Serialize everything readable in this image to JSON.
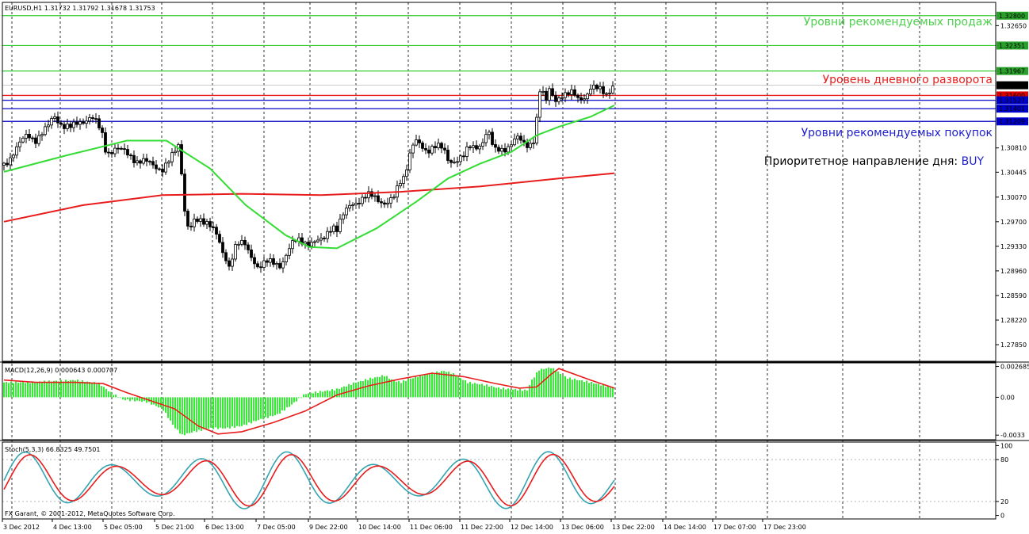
{
  "chart_data": {
    "type": "candlestick",
    "header": "EURUSD,H1  1.31732 1.31792 1.31678 1.31753",
    "watermark": "FX Garant, © 2001-2012, MetaQuotes Software Corp.",
    "price_axis": {
      "range": [
        1.276,
        1.33
      ],
      "ticks": [
        {
          "v": 1.3265,
          "label": "1.32650"
        },
        {
          "v": 1.3081,
          "label": "1.30810"
        },
        {
          "v": 1.30445,
          "label": "1.30445"
        },
        {
          "v": 1.3007,
          "label": "1.30070"
        },
        {
          "v": 1.297,
          "label": "1.29700"
        },
        {
          "v": 1.2933,
          "label": "1.29330"
        },
        {
          "v": 1.2896,
          "label": "1.28960"
        },
        {
          "v": 1.2859,
          "label": "1.28590"
        },
        {
          "v": 1.2822,
          "label": "1.28220"
        },
        {
          "v": 1.2785,
          "label": "1.27850"
        }
      ]
    },
    "level_tags": [
      {
        "v": 1.328,
        "label": "1.32800",
        "color": "#28a02a"
      },
      {
        "v": 1.32351,
        "label": "1.32351",
        "color": "#28a02a"
      },
      {
        "v": 1.31967,
        "label": "1.31967",
        "color": "#28a02a"
      },
      {
        "v": 1.31753,
        "label": "1.31753",
        "color": "#000000"
      },
      {
        "v": 1.316,
        "label": "1.31600",
        "color": "#e00000"
      },
      {
        "v": 1.31527,
        "label": "1.31527",
        "color": "#0000cc"
      },
      {
        "v": 1.31401,
        "label": "1.31401",
        "color": "#0000cc"
      },
      {
        "v": 1.31209,
        "label": "1.31209",
        "color": "#0000cc"
      }
    ],
    "annotations": {
      "sell": "Уровни рекомендуемых продаж",
      "pivot": "Уровень дневного разворота",
      "buy": "Уровни рекомендуемых покупок",
      "direction_prefix": "Приоритетное направление дня: ",
      "direction_value": "BUY"
    },
    "x_labels": [
      "3 Dec 2012",
      "4 Dec 13:00",
      "5 Dec 05:00",
      "5 Dec 21:00",
      "6 Dec 13:00",
      "7 Dec 05:00",
      "9 Dec 22:00",
      "10 Dec 14:00",
      "11 Dec 06:00",
      "11 Dec 22:00",
      "12 Dec 14:00",
      "13 Dec 06:00",
      "13 Dec 22:00",
      "14 Dec 14:00",
      "17 Dec 07:00",
      "17 Dec 23:00"
    ],
    "close_path": [
      [
        0,
        1.3055
      ],
      [
        15,
        1.308
      ],
      [
        30,
        1.31
      ],
      [
        40,
        1.3095
      ],
      [
        55,
        1.311
      ],
      [
        63,
        1.313
      ],
      [
        75,
        1.3115
      ],
      [
        85,
        1.311
      ],
      [
        95,
        1.312
      ],
      [
        103,
        1.3125
      ],
      [
        110,
        1.3128
      ],
      [
        118,
        1.3115
      ],
      [
        124,
        1.31
      ],
      [
        126,
        1.3085
      ],
      [
        130,
        1.3075
      ],
      [
        140,
        1.308
      ],
      [
        150,
        1.3075
      ],
      [
        160,
        1.307
      ],
      [
        168,
        1.3062
      ],
      [
        175,
        1.306
      ],
      [
        180,
        1.3058
      ],
      [
        190,
        1.3055
      ],
      [
        200,
        1.305
      ],
      [
        210,
        1.3062
      ],
      [
        220,
        1.3085
      ],
      [
        222,
        1.306
      ],
      [
        225,
        1.304
      ],
      [
        226,
        1.301
      ],
      [
        228,
        1.299
      ],
      [
        230,
        1.297
      ],
      [
        234,
        1.296
      ],
      [
        240,
        1.2968
      ],
      [
        250,
        1.297
      ],
      [
        257,
        1.2972
      ],
      [
        263,
        1.2965
      ],
      [
        268,
        1.295
      ],
      [
        272,
        1.2935
      ],
      [
        275,
        1.292
      ],
      [
        281,
        1.291
      ],
      [
        285,
        1.29
      ],
      [
        290,
        1.2935
      ],
      [
        296,
        1.294
      ],
      [
        303,
        1.2935
      ],
      [
        310,
        1.2918
      ],
      [
        320,
        1.2905
      ],
      [
        330,
        1.291
      ],
      [
        340,
        1.2905
      ],
      [
        348,
        1.2905
      ],
      [
        355,
        1.292
      ],
      [
        362,
        1.2935
      ],
      [
        370,
        1.294
      ],
      [
        380,
        1.294
      ],
      [
        392,
        1.294
      ],
      [
        398,
        1.2938
      ],
      [
        405,
        1.2945
      ],
      [
        410,
        1.296
      ],
      [
        416,
        1.2965
      ],
      [
        420,
        1.296
      ],
      [
        426,
        1.2975
      ],
      [
        432,
        1.2985
      ],
      [
        437,
        1.2995
      ],
      [
        443,
        1.3
      ],
      [
        450,
        1.3005
      ],
      [
        460,
        1.3008
      ],
      [
        470,
        1.3005
      ],
      [
        480,
        1.3
      ],
      [
        486,
        1.3
      ],
      [
        492,
        1.3005
      ],
      [
        500,
        1.303
      ],
      [
        505,
        1.304
      ],
      [
        509,
        1.306
      ],
      [
        514,
        1.3085
      ],
      [
        520,
        1.309
      ],
      [
        526,
        1.308
      ],
      [
        533,
        1.3075
      ],
      [
        540,
        1.3085
      ],
      [
        546,
        1.3088
      ],
      [
        555,
        1.3075
      ],
      [
        560,
        1.306
      ],
      [
        566,
        1.306
      ],
      [
        573,
        1.3068
      ],
      [
        580,
        1.307
      ],
      [
        587,
        1.308
      ],
      [
        593,
        1.308
      ],
      [
        599,
        1.3085
      ],
      [
        605,
        1.3095
      ],
      [
        610,
        1.311
      ],
      [
        617,
        1.308
      ],
      [
        620,
        1.3075
      ],
      [
        625,
        1.3078
      ],
      [
        630,
        1.308
      ],
      [
        636,
        1.3085
      ],
      [
        642,
        1.309
      ],
      [
        647,
        1.3095
      ],
      [
        652,
        1.309
      ],
      [
        658,
        1.3085
      ],
      [
        665,
        1.309
      ],
      [
        671,
        1.31
      ],
      [
        673,
        1.315
      ],
      [
        677,
        1.317
      ],
      [
        680,
        1.316
      ],
      [
        684,
        1.315
      ],
      [
        688,
        1.317
      ],
      [
        693,
        1.316
      ],
      [
        698,
        1.3155
      ],
      [
        703,
        1.316
      ],
      [
        708,
        1.3158
      ],
      [
        713,
        1.316
      ],
      [
        718,
        1.3165
      ],
      [
        722,
        1.316
      ],
      [
        726,
        1.3158
      ],
      [
        731,
        1.3158
      ],
      [
        736,
        1.316
      ],
      [
        741,
        1.317
      ],
      [
        745,
        1.3168
      ],
      [
        750,
        1.3172
      ],
      [
        755,
        1.317
      ],
      [
        760,
        1.3165
      ],
      [
        765,
        1.3168
      ],
      [
        770,
        1.3175
      ]
    ],
    "ma_fast": [
      [
        0,
        1.3045
      ],
      [
        80,
        1.307
      ],
      [
        155,
        1.3092
      ],
      [
        205,
        1.3092
      ],
      [
        260,
        1.305
      ],
      [
        305,
        1.2995
      ],
      [
        355,
        1.295
      ],
      [
        385,
        1.2932
      ],
      [
        420,
        1.293
      ],
      [
        470,
        1.296
      ],
      [
        520,
        1.3
      ],
      [
        560,
        1.3035
      ],
      [
        600,
        1.3057
      ],
      [
        640,
        1.3075
      ],
      [
        672,
        1.31
      ],
      [
        700,
        1.3113
      ],
      [
        740,
        1.3128
      ],
      [
        770,
        1.3145
      ]
    ],
    "ma_slow": [
      [
        0,
        1.297
      ],
      [
        100,
        1.2995
      ],
      [
        200,
        1.301
      ],
      [
        300,
        1.3012
      ],
      [
        400,
        1.301
      ],
      [
        500,
        1.3015
      ],
      [
        600,
        1.3023
      ],
      [
        700,
        1.3035
      ],
      [
        770,
        1.3043
      ]
    ],
    "macd": {
      "label": "MACD(12,26,9) 0.000643 0.000707",
      "range": [
        -0.0037,
        0.003
      ],
      "ticks": [
        {
          "v": 0.002685,
          "label": "0.002685"
        },
        {
          "v": 0.0,
          "label": "0.00"
        },
        {
          "v": -0.0033,
          "label": "-0.0033"
        }
      ],
      "hist": [
        [
          0,
          0.0013
        ],
        [
          30,
          0.0013
        ],
        [
          60,
          0.0014
        ],
        [
          90,
          0.0015
        ],
        [
          120,
          0.0012
        ],
        [
          135,
          0.0004
        ],
        [
          150,
          -0.0002
        ],
        [
          180,
          -0.0004
        ],
        [
          200,
          -0.001
        ],
        [
          215,
          -0.0026
        ],
        [
          225,
          -0.0033
        ],
        [
          240,
          -0.003
        ],
        [
          260,
          -0.0027
        ],
        [
          280,
          -0.0027
        ],
        [
          300,
          -0.0025
        ],
        [
          320,
          -0.002
        ],
        [
          345,
          -0.0015
        ],
        [
          360,
          -0.0008
        ],
        [
          380,
          0.0003
        ],
        [
          400,
          0.0005
        ],
        [
          420,
          0.0007
        ],
        [
          440,
          0.0012
        ],
        [
          460,
          0.0016
        ],
        [
          480,
          0.0019
        ],
        [
          490,
          0.0015
        ],
        [
          500,
          0.0013
        ],
        [
          520,
          0.0018
        ],
        [
          540,
          0.0021
        ],
        [
          555,
          0.0023
        ],
        [
          565,
          0.0021
        ],
        [
          585,
          0.0013
        ],
        [
          605,
          0.0011
        ],
        [
          625,
          0.0008
        ],
        [
          640,
          0.0007
        ],
        [
          660,
          0.0006
        ],
        [
          665,
          0.0014
        ],
        [
          675,
          0.0024
        ],
        [
          690,
          0.0026
        ],
        [
          710,
          0.0017
        ],
        [
          740,
          0.0013
        ],
        [
          770,
          0.0008
        ]
      ],
      "signal": [
        [
          0,
          0.0015
        ],
        [
          40,
          0.0013
        ],
        [
          90,
          0.0013
        ],
        [
          125,
          0.0012
        ],
        [
          155,
          0.0004
        ],
        [
          185,
          -0.0003
        ],
        [
          215,
          -0.001
        ],
        [
          245,
          -0.0025
        ],
        [
          270,
          -0.0032
        ],
        [
          300,
          -0.003
        ],
        [
          340,
          -0.0022
        ],
        [
          380,
          -0.0012
        ],
        [
          420,
          0.0002
        ],
        [
          460,
          0.001
        ],
        [
          500,
          0.0016
        ],
        [
          540,
          0.0021
        ],
        [
          580,
          0.0018
        ],
        [
          620,
          0.0012
        ],
        [
          650,
          0.0008
        ],
        [
          672,
          0.0009
        ],
        [
          690,
          0.002
        ],
        [
          700,
          0.0025
        ],
        [
          740,
          0.0015
        ],
        [
          770,
          0.0008
        ]
      ]
    },
    "stoch": {
      "label": "Stoch(5,3,3) 66.8325 49.7501",
      "range": [
        -5,
        105
      ],
      "ticks": [
        {
          "v": 100,
          "label": "100"
        },
        {
          "v": 80,
          "label": "80"
        },
        {
          "v": 20,
          "label": "20"
        },
        {
          "v": 0,
          "label": "0"
        }
      ]
    }
  }
}
